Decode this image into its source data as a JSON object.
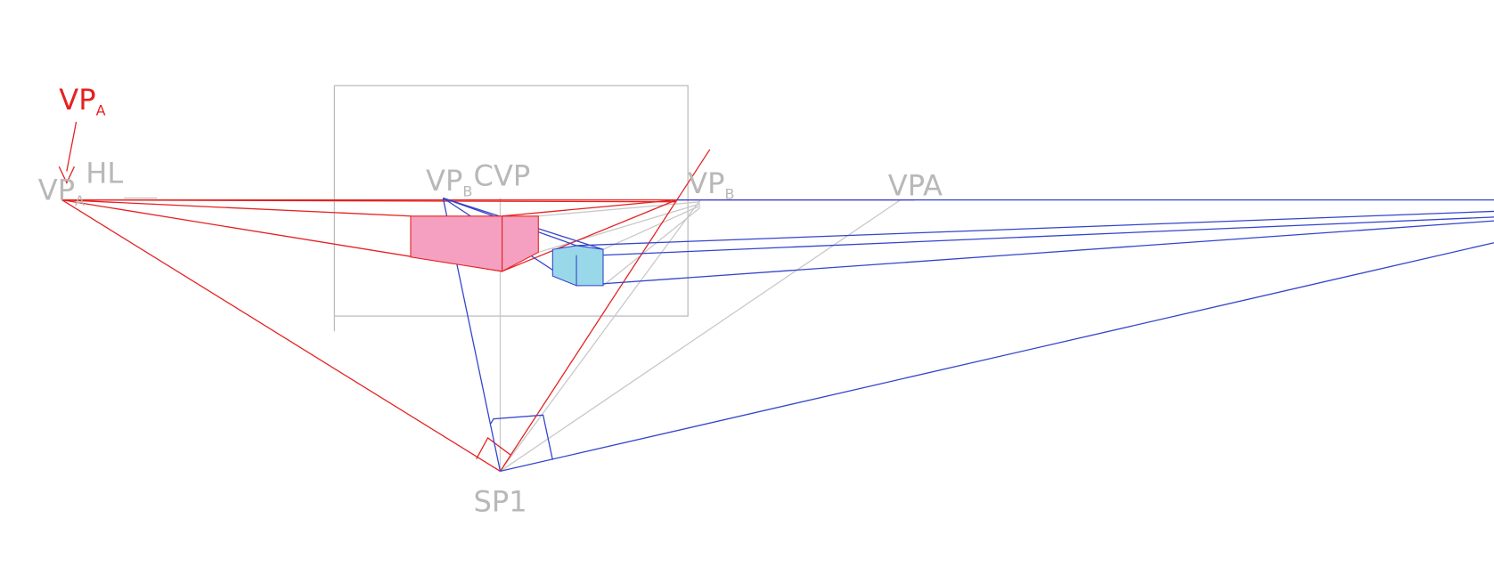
{
  "labels": [
    {
      "main": "VP",
      "sub": "A"
    },
    {
      "main": "VP",
      "sub": "A"
    },
    {
      "main": "HL"
    },
    {
      "main": "VP",
      "sub": "B"
    },
    {
      "main": "CVP"
    },
    {
      "main": "VP",
      "sub": "B"
    },
    {
      "main": "VPA"
    },
    {
      "main": "SP1"
    }
  ]
}
